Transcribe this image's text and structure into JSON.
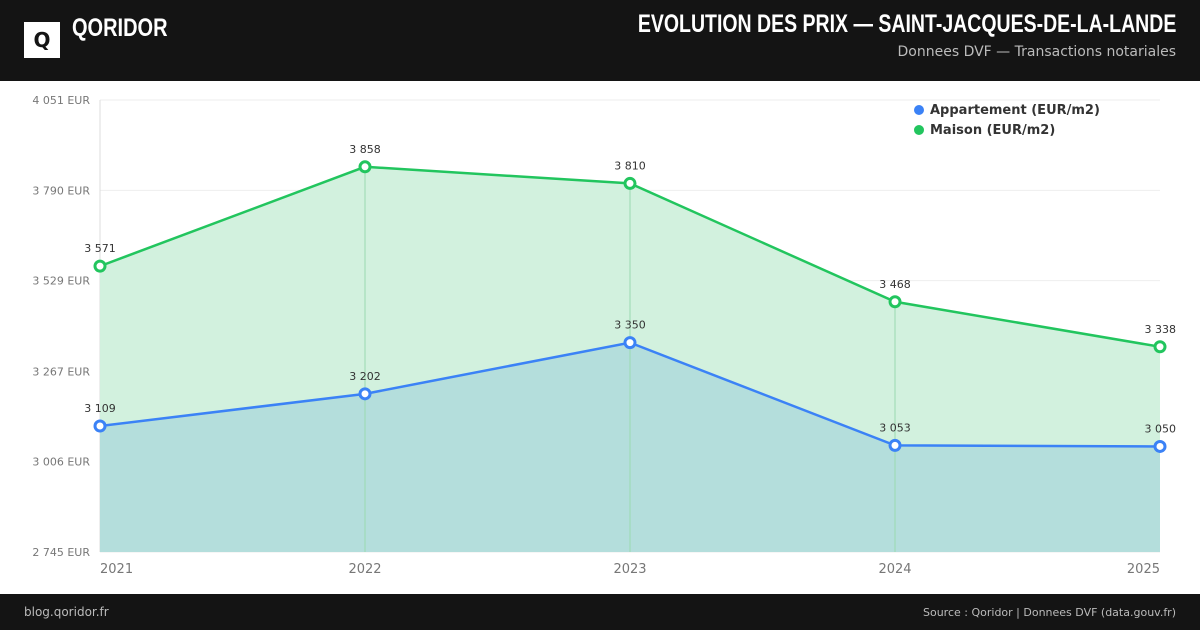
{
  "header": {
    "logo": "Q",
    "brand": "QORIDOR",
    "title": "EVOLUTION DES PRIX — SAINT-JACQUES-DE-LA-LANDE",
    "subtitle": "Donnees DVF — Transactions notariales"
  },
  "footer": {
    "left": "blog.qoridor.fr",
    "right": "Source : Qoridor | Donnees DVF (data.gouv.fr)"
  },
  "chart_data": {
    "type": "area",
    "categories": [
      "2021",
      "2022",
      "2023",
      "2024",
      "2025"
    ],
    "ylim": [
      2745,
      4051
    ],
    "yticks": [
      "4 051 EUR",
      "3 790 EUR",
      "3 529 EUR",
      "3 267 EUR",
      "3 006 EUR",
      "2 745 EUR"
    ],
    "ytick_values": [
      4051,
      3790,
      3529,
      3267,
      3006,
      2745
    ],
    "grid": true,
    "legend": "top-right",
    "series": [
      {
        "name": "Appartement (EUR/m2)",
        "color": "#3b82f6",
        "fill": "#b0dcdc",
        "values": [
          3109,
          3202,
          3350,
          3053,
          3050
        ],
        "labels": [
          "3 109",
          "3 202",
          "3 350",
          "3 053",
          "3 050"
        ]
      },
      {
        "name": "Maison (EUR/m2)",
        "color": "#22c55e",
        "fill": "#d0f0dc",
        "values": [
          3571,
          3858,
          3810,
          3468,
          3338
        ],
        "labels": [
          "3 571",
          "3 858",
          "3 810",
          "3 468",
          "3 338"
        ]
      }
    ]
  }
}
